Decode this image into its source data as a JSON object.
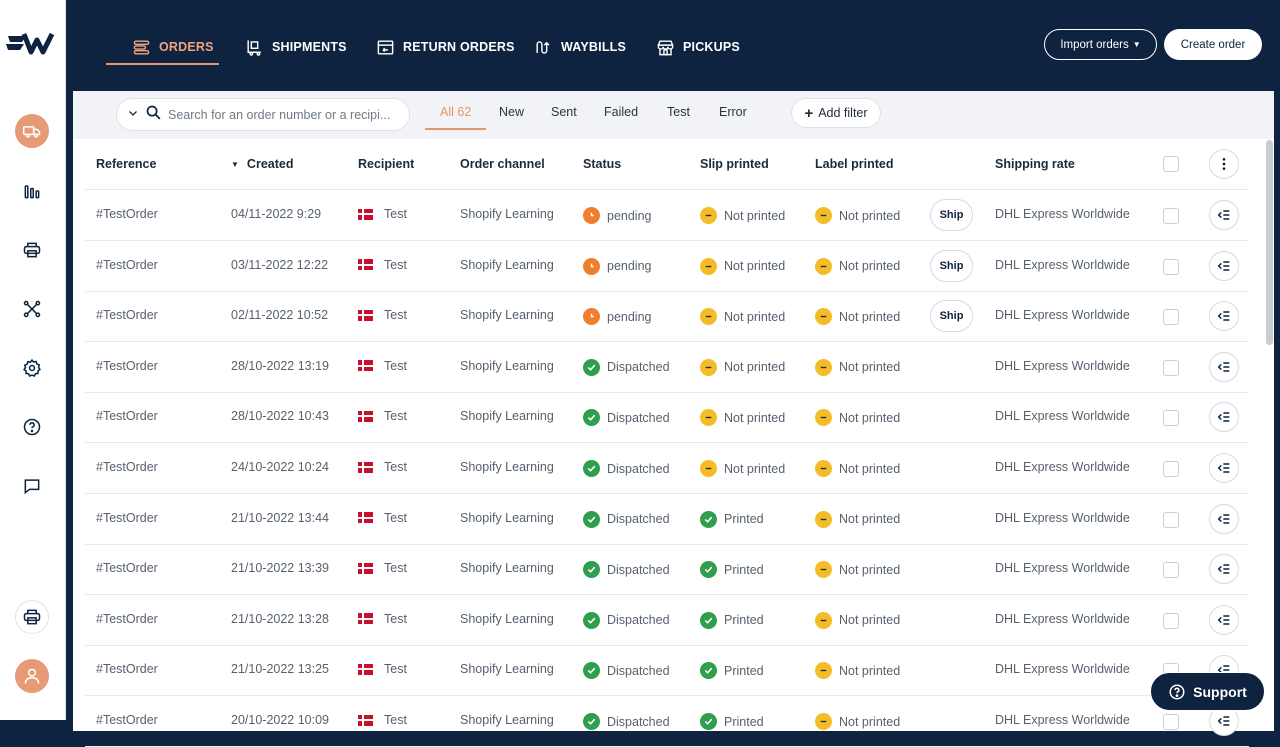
{
  "nav": {
    "tabs": [
      {
        "label": "ORDERS",
        "icon": "orders-icon"
      },
      {
        "label": "SHIPMENTS",
        "icon": "shipments-icon"
      },
      {
        "label": "RETURN ORDERS",
        "icon": "return-orders-icon"
      },
      {
        "label": "WAYBILLS",
        "icon": "waybills-icon"
      },
      {
        "label": "PICKUPS",
        "icon": "pickups-icon"
      }
    ],
    "import_label": "Import orders",
    "create_label": "Create order"
  },
  "sidebar": {
    "icons": [
      "truck-icon",
      "analytics-icon",
      "printer-icon",
      "integrations-icon",
      "settings-icon",
      "help-icon",
      "chat-icon",
      "printer-icon",
      "user-icon"
    ]
  },
  "filters": {
    "search_placeholder": "Search for an order number or a recipi...",
    "tabs": [
      "All 62",
      "New",
      "Sent",
      "Failed",
      "Test",
      "Error"
    ],
    "add_filter_label": "Add filter"
  },
  "table": {
    "headers": {
      "reference": "Reference",
      "created": "Created",
      "recipient": "Recipient",
      "channel": "Order channel",
      "status": "Status",
      "slip": "Slip printed",
      "label": "Label printed",
      "rate": "Shipping rate"
    },
    "ship_label": "Ship",
    "rows": [
      {
        "ref": "#TestOrder",
        "created": "04/11-2022 9:29",
        "recipient": "Test",
        "channel": "Shopify Learning",
        "status": "pending",
        "slip": "Not printed",
        "label": "Not printed",
        "rate": "DHL Express Worldwide",
        "ship": true
      },
      {
        "ref": "#TestOrder",
        "created": "03/11-2022 12:22",
        "recipient": "Test",
        "channel": "Shopify Learning",
        "status": "pending",
        "slip": "Not printed",
        "label": "Not printed",
        "rate": "DHL Express Worldwide",
        "ship": true
      },
      {
        "ref": "#TestOrder",
        "created": "02/11-2022 10:52",
        "recipient": "Test",
        "channel": "Shopify Learning",
        "status": "pending",
        "slip": "Not printed",
        "label": "Not printed",
        "rate": "DHL Express Worldwide",
        "ship": true
      },
      {
        "ref": "#TestOrder",
        "created": "28/10-2022 13:19",
        "recipient": "Test",
        "channel": "Shopify Learning",
        "status": "Dispatched",
        "slip": "Not printed",
        "label": "Not printed",
        "rate": "DHL Express Worldwide",
        "ship": false
      },
      {
        "ref": "#TestOrder",
        "created": "28/10-2022 10:43",
        "recipient": "Test",
        "channel": "Shopify Learning",
        "status": "Dispatched",
        "slip": "Not printed",
        "label": "Not printed",
        "rate": "DHL Express Worldwide",
        "ship": false
      },
      {
        "ref": "#TestOrder",
        "created": "24/10-2022 10:24",
        "recipient": "Test",
        "channel": "Shopify Learning",
        "status": "Dispatched",
        "slip": "Not printed",
        "label": "Not printed",
        "rate": "DHL Express Worldwide",
        "ship": false
      },
      {
        "ref": "#TestOrder",
        "created": "21/10-2022 13:44",
        "recipient": "Test",
        "channel": "Shopify Learning",
        "status": "Dispatched",
        "slip": "Printed",
        "label": "Not printed",
        "rate": "DHL Express Worldwide",
        "ship": false
      },
      {
        "ref": "#TestOrder",
        "created": "21/10-2022 13:39",
        "recipient": "Test",
        "channel": "Shopify Learning",
        "status": "Dispatched",
        "slip": "Printed",
        "label": "Not printed",
        "rate": "DHL Express Worldwide",
        "ship": false
      },
      {
        "ref": "#TestOrder",
        "created": "21/10-2022 13:28",
        "recipient": "Test",
        "channel": "Shopify Learning",
        "status": "Dispatched",
        "slip": "Printed",
        "label": "Not printed",
        "rate": "DHL Express Worldwide",
        "ship": false
      },
      {
        "ref": "#TestOrder",
        "created": "21/10-2022 13:25",
        "recipient": "Test",
        "channel": "Shopify Learning",
        "status": "Dispatched",
        "slip": "Printed",
        "label": "Not printed",
        "rate": "DHL Express Worldwide",
        "ship": false
      },
      {
        "ref": "#TestOrder",
        "created": "20/10-2022 10:09",
        "recipient": "Test",
        "channel": "Shopify Learning",
        "status": "Dispatched",
        "slip": "Printed",
        "label": "Not printed",
        "rate": "DHL Express Worldwide",
        "ship": false
      }
    ]
  },
  "support_label": "Support",
  "colors": {
    "navy": "#0d2340",
    "accent": "#e9946d",
    "pending": "#f07f2d",
    "not_printed": "#f4bd27",
    "done": "#2f9e4d"
  }
}
